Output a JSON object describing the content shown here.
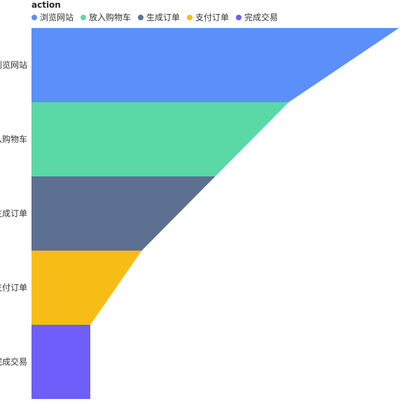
{
  "chart_data": {
    "type": "funnel",
    "legend_title": "action",
    "legend_position": "top-left",
    "categories": [
      "浏览网站",
      "放入购物车",
      "生成订单",
      "支付订单",
      "完成交易"
    ],
    "values": [
      50000,
      35000,
      25000,
      15000,
      8000
    ],
    "colors": [
      "#5b8ff9",
      "#5ad8a6",
      "#5d7092",
      "#f6bd16",
      "#6f5ef9"
    ],
    "orientation": "left-aligned",
    "grid": false
  }
}
